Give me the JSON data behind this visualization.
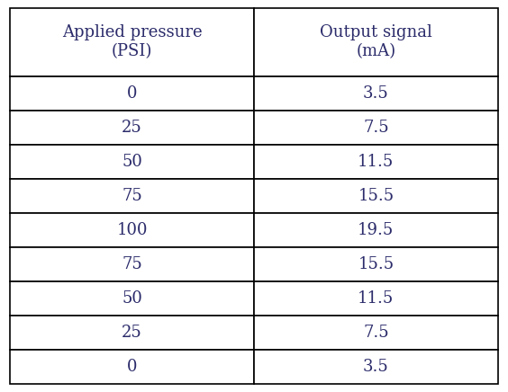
{
  "col_headers": [
    "Applied pressure\n(PSI)",
    "Output signal\n(mA)"
  ],
  "rows": [
    [
      "0",
      "3.5"
    ],
    [
      "25",
      "7.5"
    ],
    [
      "50",
      "11.5"
    ],
    [
      "75",
      "15.5"
    ],
    [
      "100",
      "19.5"
    ],
    [
      "75",
      "15.5"
    ],
    [
      "50",
      "11.5"
    ],
    [
      "25",
      "7.5"
    ],
    [
      "0",
      "3.5"
    ]
  ],
  "background_color": "#ffffff",
  "text_color": "#2b2b6b",
  "line_color": "#000000",
  "font_size": 13,
  "header_font_size": 13,
  "fig_width": 5.64,
  "fig_height": 4.36,
  "dpi": 100
}
